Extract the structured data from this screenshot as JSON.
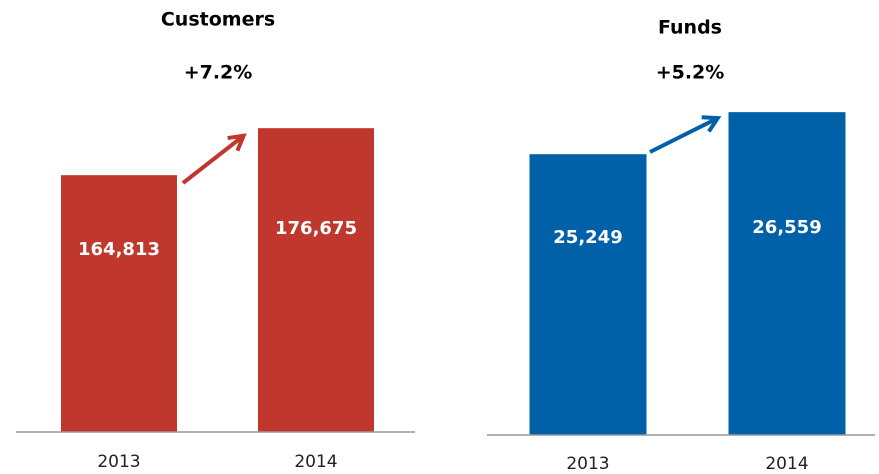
{
  "chart_data": [
    {
      "type": "bar",
      "title": "Customers",
      "annotation": "+7.2%",
      "categories": [
        "2013",
        "2014"
      ],
      "values": [
        164813,
        176675
      ],
      "value_labels": [
        "164,813",
        "176,675"
      ],
      "color": "#c0372d",
      "ylim": [
        100000,
        180000
      ]
    },
    {
      "type": "bar",
      "title": "Funds",
      "annotation": "+5.2%",
      "categories": [
        "2013",
        "2014"
      ],
      "values": [
        25249,
        26559
      ],
      "value_labels": [
        "25,249",
        "26,559"
      ],
      "color": "#0060a8",
      "ylim": [
        16500,
        27000
      ]
    }
  ]
}
